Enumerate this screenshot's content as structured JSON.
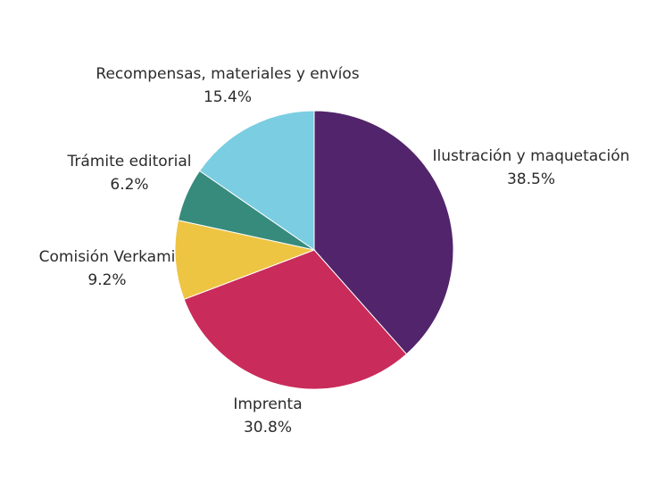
{
  "chart_data": {
    "type": "pie",
    "title": "",
    "start": "12 o'clock",
    "direction": "clockwise",
    "legend": "none",
    "slices": [
      {
        "label": "Ilustración y maquetación",
        "value": 38.5,
        "value_label": "38.5%",
        "color": "#52246b"
      },
      {
        "label": "Imprenta",
        "value": 30.8,
        "value_label": "30.8%",
        "color": "#c92b5a"
      },
      {
        "label": "Comisión Verkami",
        "value": 9.2,
        "value_label": "9.2%",
        "color": "#eec443"
      },
      {
        "label": "Trámite editorial",
        "value": 6.2,
        "value_label": "6.2%",
        "color": "#378b7c"
      },
      {
        "label": "Recompensas, materiales y envíos",
        "value": 15.4,
        "value_label": "15.4%",
        "color": "#7bcde2"
      }
    ]
  }
}
